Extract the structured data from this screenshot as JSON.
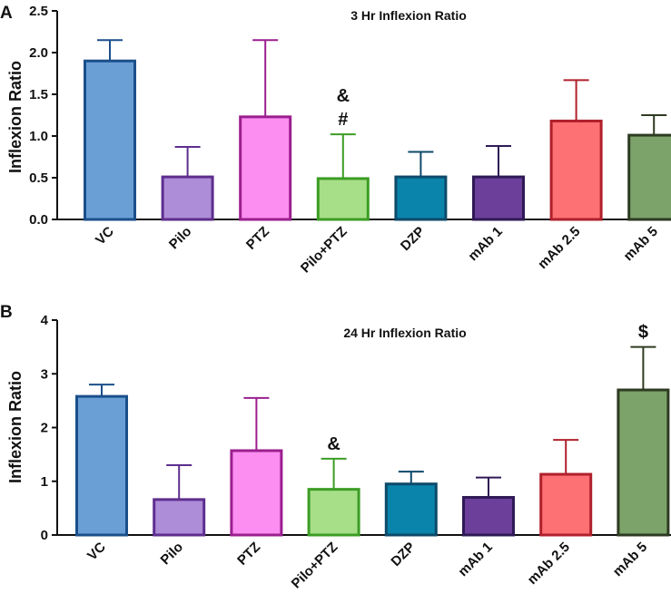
{
  "chart_data": [
    {
      "panel": "A",
      "type": "bar",
      "title": "3 Hr Inflexion Ratio",
      "xlabel": "",
      "ylabel": "Inflexion Ratio",
      "ylim": [
        0,
        2.5
      ],
      "yticks": [
        0.0,
        0.5,
        1.0,
        1.5,
        2.0,
        2.5
      ],
      "ytick_labels": [
        "0.0",
        "0.5",
        "1.0",
        "1.5",
        "2.0",
        "2.5"
      ],
      "categories": [
        "VC",
        "Pilo",
        "PTZ",
        "Pilo+PTZ",
        "DZP",
        "mAb 1",
        "mAb 2.5",
        "mAb 5"
      ],
      "values": [
        1.9,
        0.51,
        1.23,
        0.49,
        0.51,
        0.51,
        1.18,
        1.01
      ],
      "error_upper": [
        2.15,
        0.87,
        2.15,
        1.02,
        0.81,
        0.88,
        1.67,
        1.25
      ],
      "annotations": [
        {
          "category": "Pilo+PTZ",
          "lines": [
            "&",
            "#"
          ]
        }
      ]
    },
    {
      "panel": "B",
      "type": "bar",
      "title": "24 Hr Inflexion Ratio",
      "xlabel": "",
      "ylabel": "Inflexion Ratio",
      "ylim": [
        0,
        4
      ],
      "yticks": [
        0,
        1,
        2,
        3,
        4
      ],
      "ytick_labels": [
        "0",
        "1",
        "2",
        "3",
        "4"
      ],
      "categories": [
        "VC",
        "Pilo",
        "PTZ",
        "Pilo+PTZ",
        "DZP",
        "mAb 1",
        "mAb 2.5",
        "mAb 5"
      ],
      "values": [
        2.58,
        0.66,
        1.57,
        0.85,
        0.95,
        0.7,
        1.13,
        2.7
      ],
      "error_upper": [
        2.8,
        1.3,
        2.55,
        1.42,
        1.18,
        1.07,
        1.77,
        3.5
      ],
      "annotations": [
        {
          "category": "Pilo+PTZ",
          "lines": [
            "&"
          ]
        },
        {
          "category": "mAb 5",
          "lines": [
            "$"
          ]
        }
      ]
    }
  ],
  "colors": {
    "fills": [
      "#6a9fd6",
      "#ad8cd8",
      "#fb8ef0",
      "#a7de88",
      "#0a84ab",
      "#6c3f9a",
      "#fd7073",
      "#7ba36a"
    ],
    "edges": [
      "#1b4f8a",
      "#5e2e8e",
      "#9b1f8f",
      "#3b9d24",
      "#0e4a6a",
      "#2f1a55",
      "#b0202c",
      "#2e3b22"
    ],
    "axis": "#111111"
  }
}
